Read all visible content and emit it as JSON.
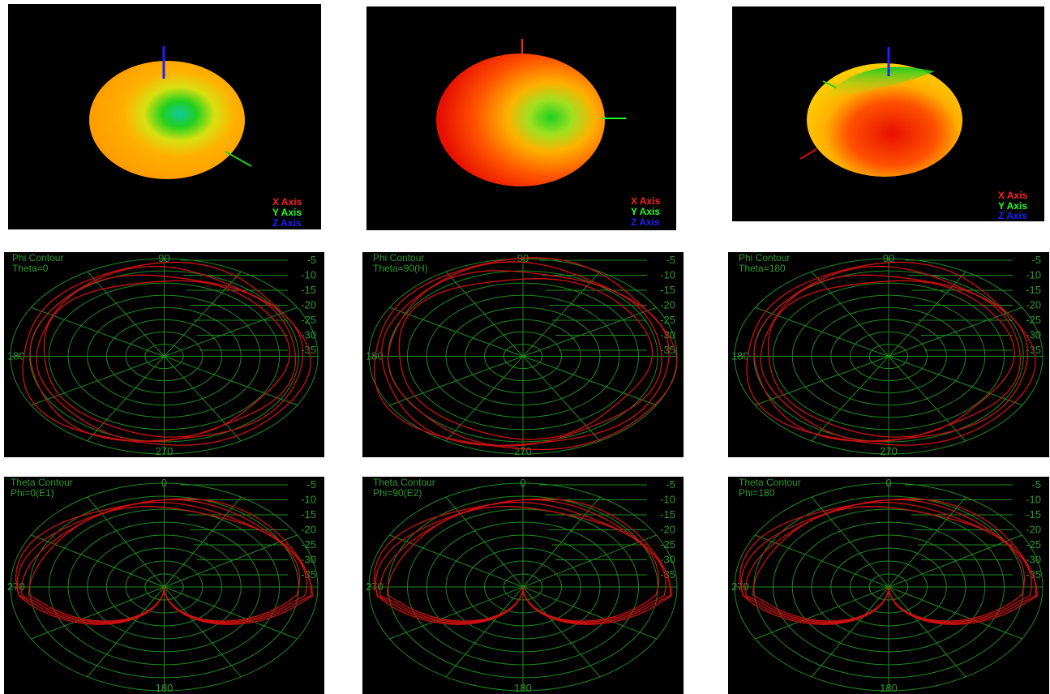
{
  "colors": {
    "background": "#000000",
    "grid": "#1f8a1f",
    "grid_text": "#2e9a2e",
    "trace": "#d01010",
    "x_axis": "#ff2020",
    "y_axis": "#20ff20",
    "z_axis": "#2020ff"
  },
  "pattern3d": [
    {
      "legend": {
        "x": "X Axis",
        "y": "Y Axis",
        "z": "Z Axis"
      },
      "dominant": "orange"
    },
    {
      "legend": {
        "x": "X Axis",
        "y": "Y Axis",
        "z": "Z Axis"
      },
      "dominant": "red"
    },
    {
      "legend": {
        "x": "X Axis",
        "y": "Y Axis",
        "z": "Z Axis"
      },
      "dominant": "red"
    }
  ],
  "chart_data": [
    {
      "type": "polar",
      "title": "Phi Contour",
      "subtitle": "Theta=0",
      "angle_labels": {
        "top": "90",
        "left": "180",
        "bottom": "270"
      },
      "radial_ticks": [
        "-5",
        "-10",
        "-15",
        "-20",
        "-25",
        "-30",
        "-35"
      ],
      "traces_db": [
        -8,
        -10,
        -12,
        -14
      ]
    },
    {
      "type": "polar",
      "title": "Phi Contour",
      "subtitle": "Theta=90(H)",
      "angle_labels": {
        "top": "90",
        "left": "180",
        "bottom": "270"
      },
      "radial_ticks": [
        "-5",
        "-10",
        "-15",
        "-20",
        "-25",
        "-30",
        "-35"
      ],
      "traces_db": [
        -6,
        -8,
        -10,
        -13
      ]
    },
    {
      "type": "polar",
      "title": "Phi Contour",
      "subtitle": "Theta=180",
      "angle_labels": {
        "top": "90",
        "left": "180",
        "bottom": "270"
      },
      "radial_ticks": [
        "-5",
        "-10",
        "-15",
        "-20",
        "-25",
        "-30",
        "-35"
      ],
      "traces_db": [
        -8,
        -10,
        -12,
        -14
      ]
    },
    {
      "type": "polar",
      "title": "Theta Contour",
      "subtitle": "Phi=0(E1)",
      "angle_labels": {
        "top": "0",
        "left": "270",
        "bottom": "180"
      },
      "radial_ticks": [
        "-5",
        "-10",
        "-15",
        "-20",
        "-25",
        "-30",
        "-35"
      ],
      "pattern": "cardioid-inverted"
    },
    {
      "type": "polar",
      "title": "Theta Contour",
      "subtitle": "Phi=90(E2)",
      "angle_labels": {
        "top": "0",
        "left": "270",
        "bottom": "180"
      },
      "radial_ticks": [
        "-5",
        "-10",
        "-15",
        "-20",
        "-25",
        "-30",
        "-35"
      ],
      "pattern": "cardioid-inverted"
    },
    {
      "type": "polar",
      "title": "Theta Contour",
      "subtitle": "Phi=180",
      "angle_labels": {
        "top": "0",
        "left": "270",
        "bottom": "180"
      },
      "radial_ticks": [
        "-5",
        "-10",
        "-15",
        "-20",
        "-25",
        "-30",
        "-35"
      ],
      "pattern": "cardioid-inverted"
    }
  ]
}
